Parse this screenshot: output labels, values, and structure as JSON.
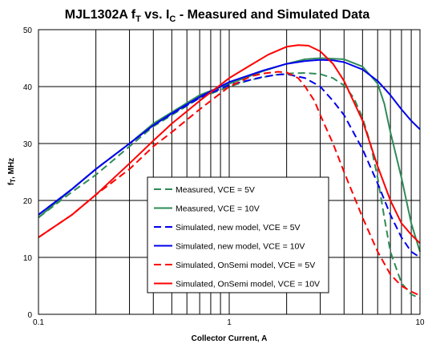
{
  "chart_data": {
    "type": "line",
    "title": "MJL1302A fᴛ vs. Iᴄ - Measured and Simulated Data",
    "title_parts": {
      "a": "MJL1302A f",
      "sub1": "T",
      "b": " vs. I",
      "sub2": "C",
      "c": " - Measured and Simulated Data"
    },
    "xlabel": "Collector Current, A",
    "ylabel": "fT, MHz",
    "ylabel_parts": {
      "a": "f",
      "sub": "T",
      "b": ", MHz"
    },
    "xscale": "log",
    "xlim": [
      0.1,
      10
    ],
    "ylim": [
      0,
      50
    ],
    "grid": true,
    "legend_position": "center",
    "x_ticks": [
      "0.1",
      "1",
      "10"
    ],
    "y_ticks": [
      "0",
      "10",
      "20",
      "30",
      "40",
      "50"
    ],
    "series": [
      {
        "name": "Measured, VCE = 5V",
        "color": "#2e8b57",
        "dash": "dashed",
        "x": [
          0.1,
          0.15,
          0.2,
          0.3,
          0.4,
          0.5,
          0.7,
          1.0,
          1.3,
          1.7,
          2.0,
          2.5,
          3.0,
          3.5,
          4.0,
          4.5,
          5.0,
          5.5,
          6.0,
          6.5,
          7.0,
          8.0,
          9.0,
          10.0
        ],
        "y": [
          17,
          21.5,
          24.5,
          29.5,
          33,
          35,
          38,
          40,
          41.2,
          42,
          42.3,
          42.4,
          42.2,
          41.5,
          40.2,
          38,
          34.5,
          30,
          24,
          17,
          11,
          5.5,
          3.5,
          2.8
        ]
      },
      {
        "name": "Measured, VCE = 10V",
        "color": "#2e8b57",
        "dash": "solid",
        "x": [
          0.1,
          0.15,
          0.2,
          0.3,
          0.4,
          0.5,
          0.7,
          1.0,
          1.5,
          2.0,
          2.5,
          3.0,
          4.0,
          5.0,
          6.0,
          6.5,
          7.0,
          8.0,
          9.0,
          10.0
        ],
        "y": [
          17,
          22,
          25.5,
          30,
          33.5,
          35.5,
          38.5,
          40.5,
          42.7,
          44,
          44.8,
          45,
          44.8,
          43.5,
          40.5,
          37,
          32,
          24,
          16,
          11
        ]
      },
      {
        "name": "Simulated, new model, VCE = 5V",
        "color": "#0000ee",
        "dash": "dashed",
        "x": [
          0.1,
          0.15,
          0.2,
          0.3,
          0.4,
          0.5,
          0.7,
          1.0,
          1.5,
          1.8,
          2.0,
          2.5,
          3.0,
          3.5,
          4.0,
          5.0,
          6.0,
          7.0,
          8.0,
          9.0,
          10.0
        ],
        "y": [
          17.5,
          22,
          25.5,
          30,
          33.2,
          35.2,
          38,
          40.3,
          41.7,
          42.1,
          42.2,
          41.5,
          40,
          37.5,
          35,
          29,
          23,
          17.5,
          13.5,
          11,
          10
        ]
      },
      {
        "name": "Simulated, new model, VCE = 10V",
        "color": "#0000ee",
        "dash": "solid",
        "x": [
          0.1,
          0.15,
          0.2,
          0.3,
          0.4,
          0.5,
          0.7,
          1.0,
          1.5,
          2.0,
          2.5,
          3.0,
          3.5,
          4.0,
          5.0,
          6.0,
          7.0,
          8.0,
          9.0,
          10.0
        ],
        "y": [
          17.5,
          22,
          25.5,
          30,
          33.2,
          35.3,
          38.2,
          40.8,
          42.8,
          44,
          44.5,
          44.7,
          44.6,
          44.3,
          43,
          41,
          38.5,
          36,
          34,
          32.5
        ]
      },
      {
        "name": "Simulated, OnSemi model, VCE = 5V",
        "color": "#ff0000",
        "dash": "dashed",
        "x": [
          0.1,
          0.15,
          0.2,
          0.3,
          0.4,
          0.5,
          0.7,
          1.0,
          1.3,
          1.5,
          1.8,
          2.0,
          2.3,
          2.5,
          2.8,
          3.0,
          3.5,
          4.0,
          5.0,
          6.0,
          7.0,
          8.0,
          9.0,
          10.0
        ],
        "y": [
          13.5,
          17.5,
          21,
          25.5,
          29.5,
          32,
          36,
          40,
          41.8,
          42.3,
          42.6,
          42.5,
          41.5,
          40,
          37.5,
          35,
          30,
          25,
          17,
          11,
          7,
          5,
          4,
          3.3
        ]
      },
      {
        "name": "Simulated, OnSemi model, VCE = 10V",
        "color": "#ff0000",
        "dash": "solid",
        "x": [
          0.1,
          0.15,
          0.2,
          0.3,
          0.4,
          0.5,
          0.7,
          1.0,
          1.3,
          1.6,
          2.0,
          2.3,
          2.6,
          3.0,
          3.5,
          4.0,
          5.0,
          6.0,
          7.0,
          8.0,
          9.0,
          10.0
        ],
        "y": [
          13.5,
          17.5,
          21,
          26.5,
          30.5,
          33.5,
          37.5,
          41.5,
          43.8,
          45.6,
          47,
          47.3,
          47.2,
          46.2,
          44,
          41,
          34,
          26,
          20,
          16,
          14,
          12.5
        ]
      }
    ]
  }
}
